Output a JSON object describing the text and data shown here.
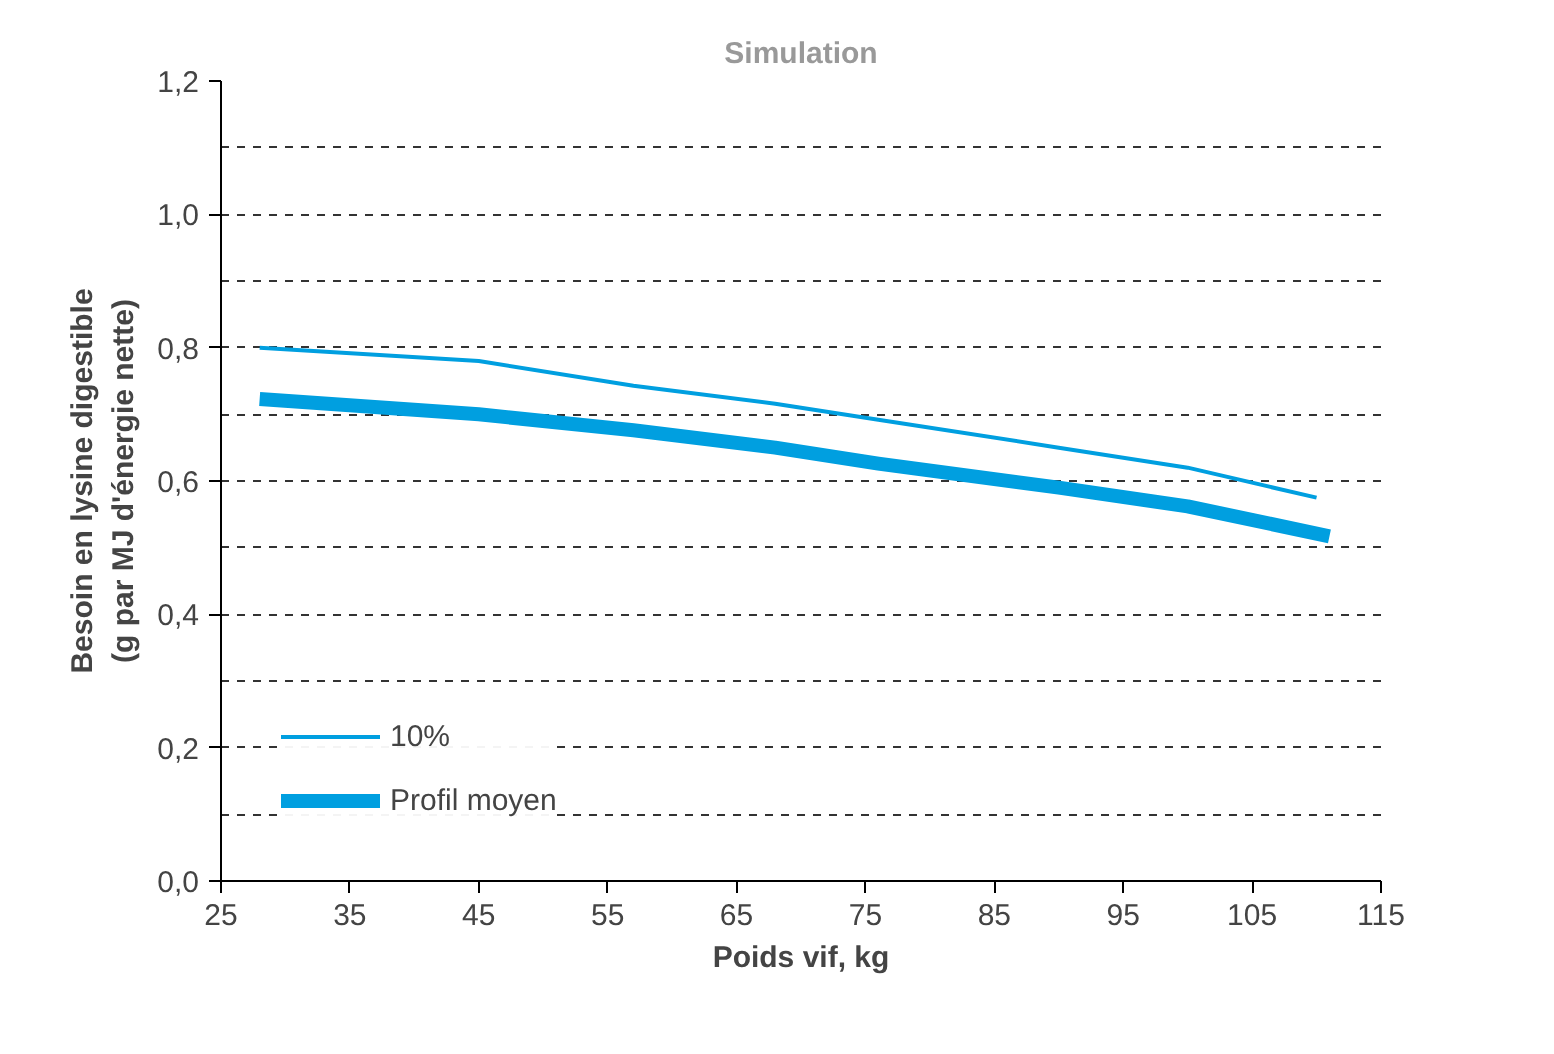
{
  "chart_data": {
    "type": "line",
    "title": "Simulation",
    "xlabel": "Poids vif, kg",
    "ylabel": "Besoin en lysine digestible\n(g par MJ d'énergie nette)",
    "xlim": [
      25,
      115
    ],
    "xticks": [
      25,
      35,
      45,
      55,
      65,
      75,
      85,
      95,
      105,
      115
    ],
    "ylim": [
      0,
      1.2
    ],
    "yticks": [
      {
        "value": 0,
        "label": "0,0"
      },
      {
        "value": 0.2,
        "label": "0,2"
      },
      {
        "value": 0.4,
        "label": "0,4"
      },
      {
        "value": 0.6,
        "label": "0,6"
      },
      {
        "value": 0.8,
        "label": "0,8"
      },
      {
        "value": 1.0,
        "label": "1,0"
      },
      {
        "value": 1.2,
        "label": "1,2"
      }
    ],
    "grid": "y",
    "legend": "bottom left",
    "marker": "none",
    "line_style": "solid",
    "series": [
      {
        "name": "10%",
        "color": "#009fe0",
        "x": [
          28,
          45,
          57,
          68,
          76,
          90,
          100,
          110
        ],
        "values": [
          0.8,
          0.78,
          0.743,
          0.716,
          0.692,
          0.65,
          0.62,
          0.575
        ]
      },
      {
        "name": "Profil moyen",
        "color": "#009fe0",
        "x": [
          28,
          45,
          57,
          68,
          76,
          90,
          100,
          111
        ],
        "values": [
          0.723,
          0.7,
          0.676,
          0.65,
          0.626,
          0.59,
          0.562,
          0.517
        ]
      }
    ]
  }
}
